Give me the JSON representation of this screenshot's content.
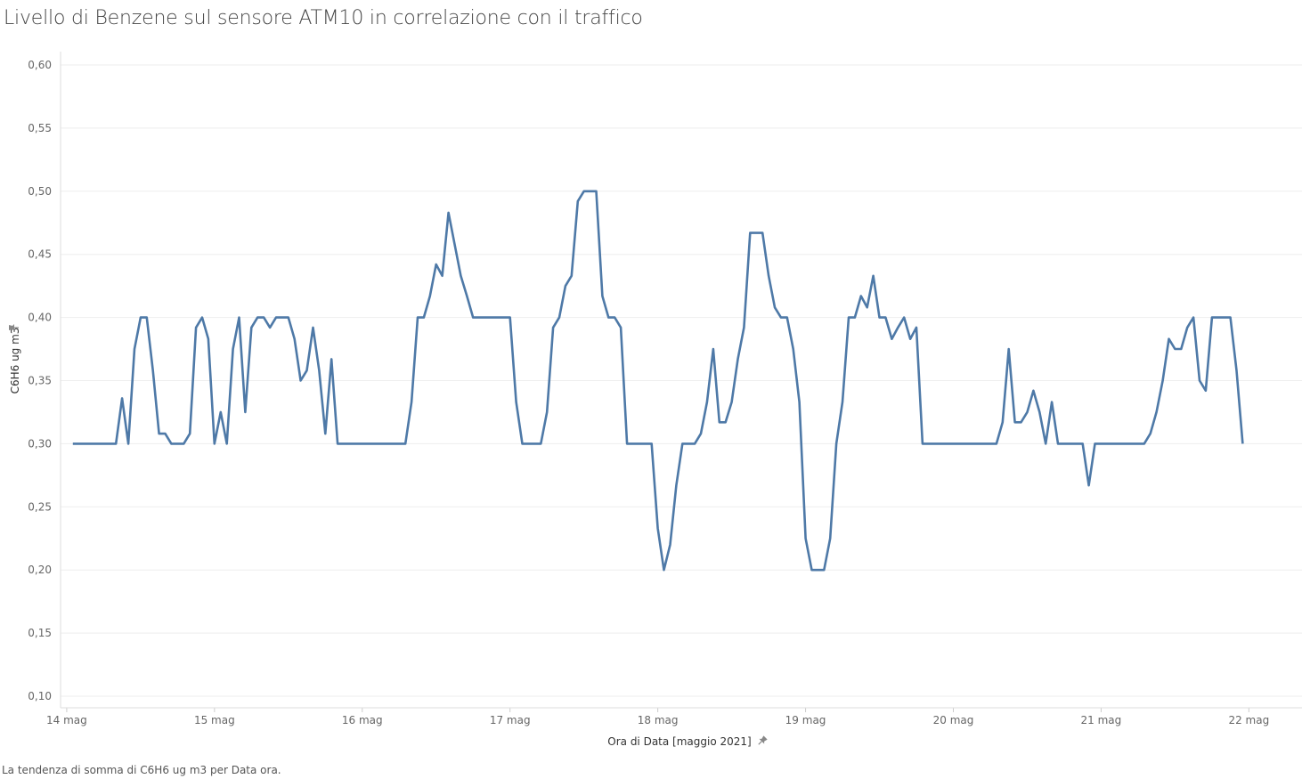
{
  "title": "Livello di Benzene sul sensore ATM10 in correlazione con il traffico",
  "caption": "La tendenza di somma di C6H6 ug m3 per Data ora.",
  "colors": {
    "line": "#4e79a7",
    "grid": "#eeeeee",
    "axis_text": "#666666",
    "pin": "#888888"
  },
  "icons": {
    "y_pin": "pin-icon",
    "x_pin": "pin-icon"
  },
  "chart_data": {
    "type": "line",
    "title": "Livello di Benzene sul sensore ATM10 in correlazione con il traffico",
    "xlabel": "Ora di Data [maggio 2021]",
    "ylabel": "C6H6 ug m3",
    "ylim": [
      0.1,
      0.6
    ],
    "xlim": [
      "2021-05-13 23:00",
      "2021-05-22 04:00"
    ],
    "x_ticks": [
      "14 mag",
      "15 mag",
      "16 mag",
      "17 mag",
      "18 mag",
      "19 mag",
      "20 mag",
      "21 mag",
      "22 mag"
    ],
    "y_ticks": [
      "0,10",
      "0,15",
      "0,20",
      "0,25",
      "0,30",
      "0,35",
      "0,40",
      "0,45",
      "0,50",
      "0,55",
      "0,60"
    ],
    "grid": true,
    "legend": "none",
    "series": [
      {
        "x_start": "2021-05-14 01:00",
        "x_step_hours": 1,
        "values": [
          0.3,
          0.3,
          0.3,
          0.3,
          0.3,
          0.3,
          0.3,
          0.3,
          0.336,
          0.3,
          0.375,
          0.4,
          0.4,
          0.358,
          0.308,
          0.308,
          0.3,
          0.3,
          0.3,
          0.308,
          0.392,
          0.4,
          0.383,
          0.3,
          0.325,
          0.3,
          0.375,
          0.4,
          0.325,
          0.392,
          0.4,
          0.4,
          0.392,
          0.4,
          0.4,
          0.4,
          0.383,
          0.35,
          0.358,
          0.392,
          0.358,
          0.308,
          0.367,
          0.3,
          0.3,
          0.3,
          0.3,
          0.3,
          0.3,
          0.3,
          0.3,
          0.3,
          0.3,
          0.3,
          0.3,
          0.333,
          0.4,
          0.4,
          0.417,
          0.442,
          0.433,
          0.483,
          0.458,
          0.433,
          0.417,
          0.4,
          0.4,
          0.4,
          0.4,
          0.4,
          0.4,
          0.4,
          0.333,
          0.3,
          0.3,
          0.3,
          0.3,
          0.325,
          0.392,
          0.4,
          0.425,
          0.433,
          0.492,
          0.5,
          0.5,
          0.5,
          0.417,
          0.4,
          0.4,
          0.392,
          0.3,
          0.3,
          0.3,
          0.3,
          0.3,
          0.233,
          0.2,
          0.22,
          0.267,
          0.3,
          0.3,
          0.3,
          0.308,
          0.333,
          0.375,
          0.317,
          0.317,
          0.333,
          0.367,
          0.392,
          0.467,
          0.467,
          0.467,
          0.433,
          0.408,
          0.4,
          0.4,
          0.375,
          0.333,
          0.225,
          0.2,
          0.2,
          0.2,
          0.225,
          0.3,
          0.333,
          0.4,
          0.4,
          0.417,
          0.408,
          0.433,
          0.4,
          0.4,
          0.383,
          0.392,
          0.4,
          0.383,
          0.392,
          0.3,
          0.3,
          0.3,
          0.3,
          0.3,
          0.3,
          0.3,
          0.3,
          0.3,
          0.3,
          0.3,
          0.3,
          0.3,
          0.317,
          0.375,
          0.317,
          0.317,
          0.325,
          0.342,
          0.325,
          0.3,
          0.333,
          0.3,
          0.3,
          0.3,
          0.3,
          0.3,
          0.267,
          0.3,
          0.3,
          0.3,
          0.3,
          0.3,
          0.3,
          0.3,
          0.3,
          0.3,
          0.308,
          0.325,
          0.35,
          0.383,
          0.375,
          0.375,
          0.392,
          0.4,
          0.35,
          0.342,
          0.4,
          0.4,
          0.4,
          0.4,
          0.358,
          0.3
        ]
      }
    ]
  }
}
